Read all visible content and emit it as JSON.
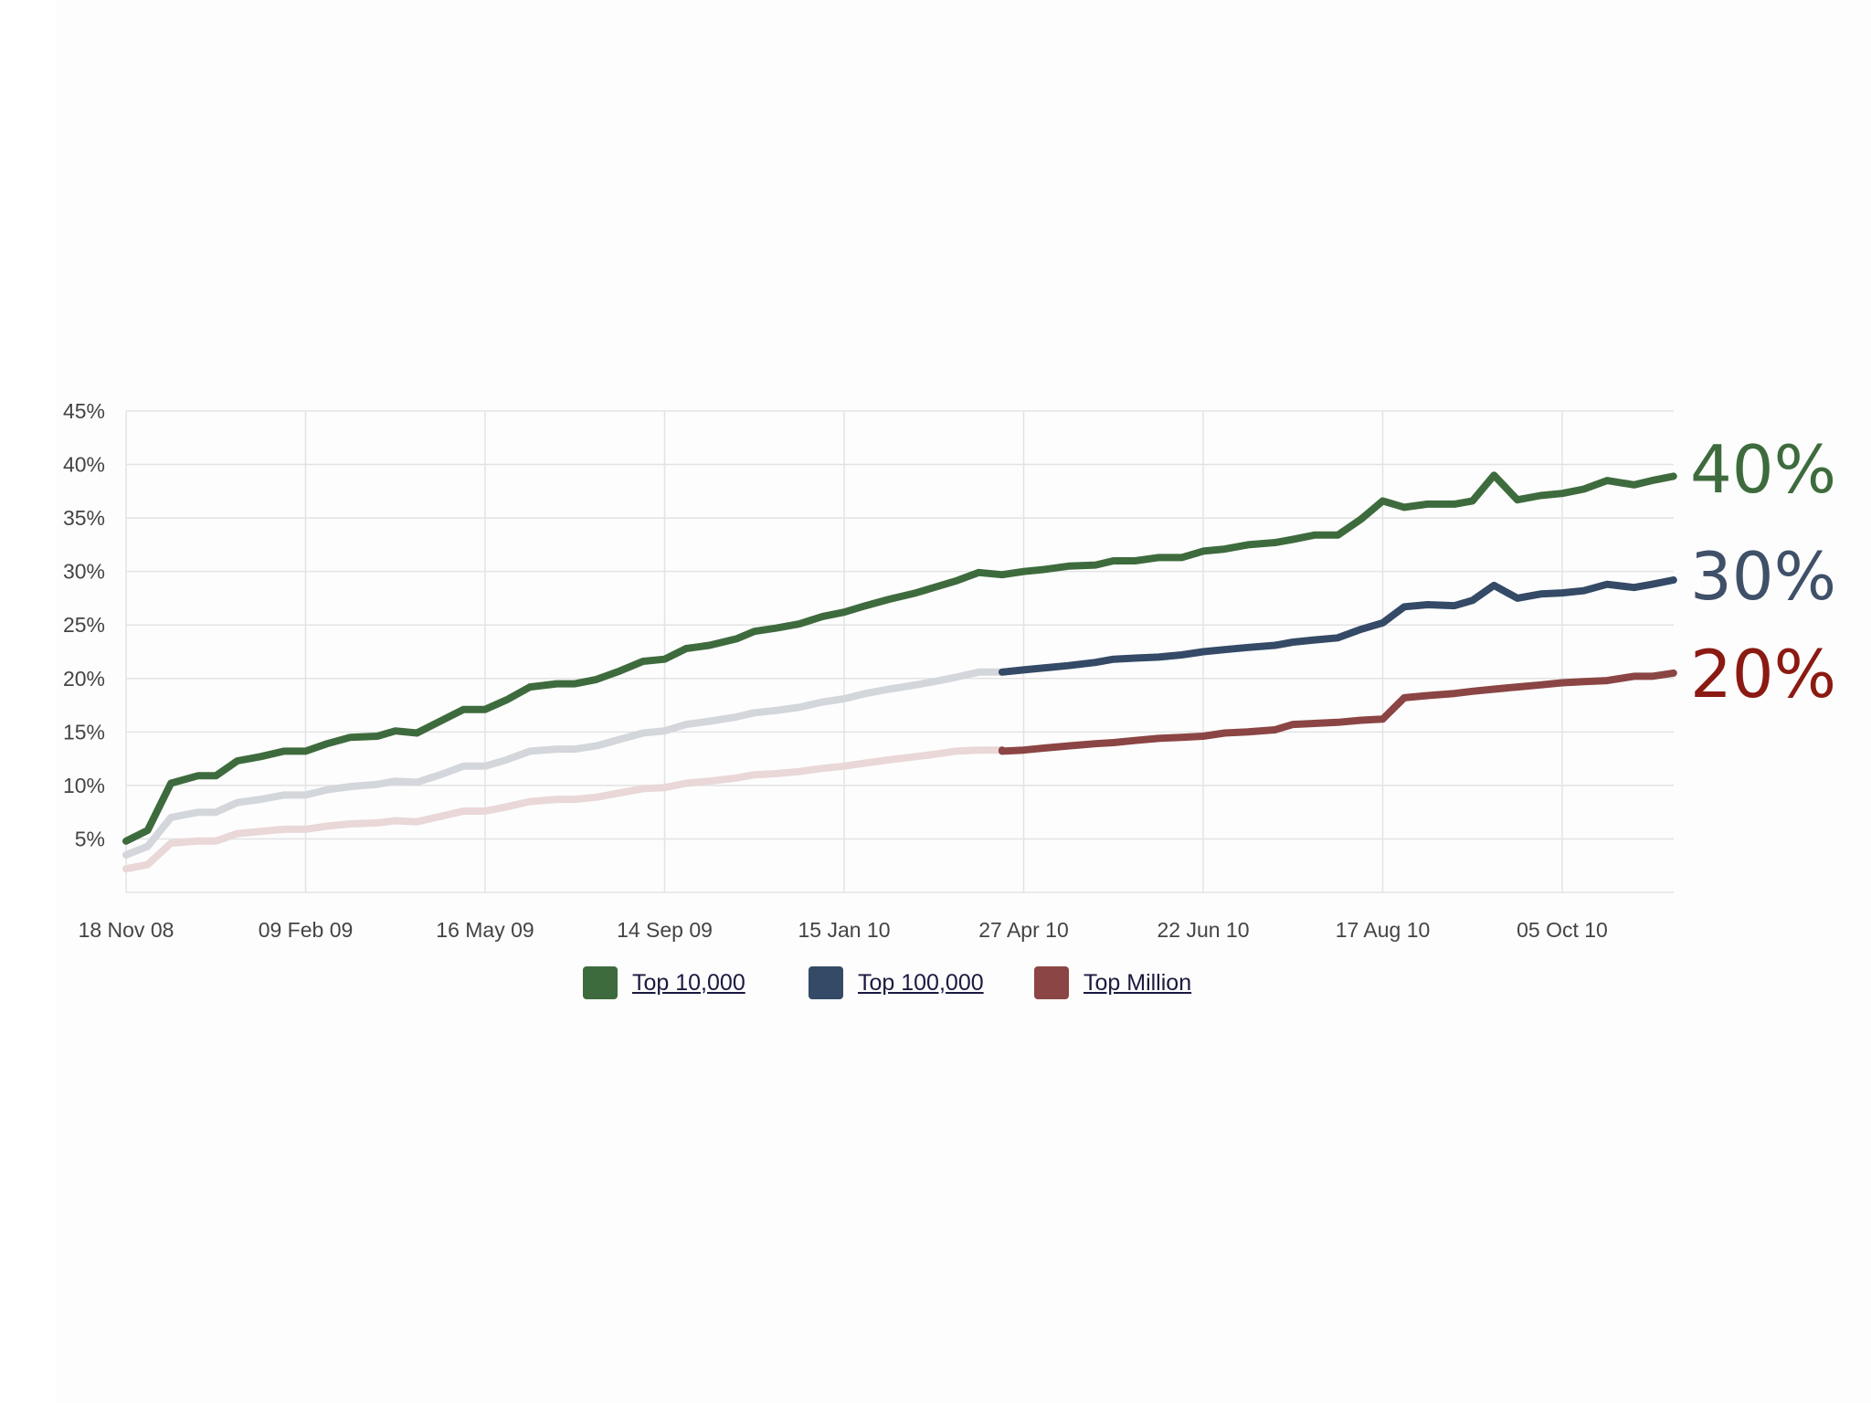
{
  "chart_data": {
    "type": "line",
    "x_tick_labels": [
      "18 Nov 08",
      "09 Feb 09",
      "16 May 09",
      "14 Sep 09",
      "15 Jan 10",
      "27 Apr 10",
      "22 Jun 10",
      "17 Aug 10",
      "05 Oct 10"
    ],
    "y_tick_labels": [
      "45%",
      "40%",
      "35%",
      "30%",
      "25%",
      "20%",
      "15%",
      "10%",
      "5%"
    ],
    "y_tick_values": [
      45,
      40,
      35,
      30,
      25,
      20,
      15,
      10,
      5
    ],
    "ylim": [
      0,
      45
    ],
    "x_tick_count": 9,
    "grid": true,
    "legend_position": "bottom-center",
    "series": [
      {
        "name": "Top 10,000",
        "color": "#3e6b3d",
        "faded_color": "#3e6b3d",
        "faded_until": 0,
        "x": [
          0,
          0.12,
          0.25,
          0.4,
          0.5,
          0.62,
          0.75,
          0.88,
          1,
          1.12,
          1.25,
          1.4,
          1.5,
          1.62,
          1.75,
          1.88,
          2,
          2.12,
          2.25,
          2.4,
          2.5,
          2.62,
          2.75,
          2.88,
          3,
          3.12,
          3.25,
          3.4,
          3.5,
          3.62,
          3.75,
          3.88,
          4,
          4.12,
          4.25,
          4.4,
          4.5,
          4.62,
          4.75,
          4.88,
          5,
          5.12,
          5.25,
          5.4,
          5.5,
          5.62,
          5.75,
          5.88,
          6,
          6.12,
          6.25,
          6.4,
          6.5,
          6.62,
          6.75,
          6.88,
          7,
          7.12,
          7.25,
          7.4,
          7.5,
          7.62,
          7.75,
          7.88,
          8,
          8.12,
          8.25,
          8.4,
          8.5,
          8.62
        ],
        "values": [
          4.8,
          5.8,
          10.2,
          10.9,
          10.9,
          12.3,
          12.7,
          13.2,
          13.2,
          13.9,
          14.5,
          14.6,
          15.1,
          14.9,
          16.0,
          17.1,
          17.1,
          18.0,
          19.2,
          19.5,
          19.5,
          19.9,
          20.7,
          21.6,
          21.8,
          22.8,
          23.1,
          23.7,
          24.4,
          24.7,
          25.1,
          25.8,
          26.2,
          26.8,
          27.4,
          28.0,
          28.5,
          29.1,
          29.9,
          29.7,
          30.0,
          30.2,
          30.5,
          30.6,
          31.0,
          31.0,
          31.3,
          31.3,
          31.9,
          32.1,
          32.5,
          32.7,
          33.0,
          33.4,
          33.4,
          34.9,
          36.6,
          36.0,
          36.3,
          36.3,
          36.6,
          39.0,
          36.7,
          37.1,
          37.3,
          37.7,
          38.5,
          38.1,
          38.5,
          38.9
        ]
      },
      {
        "name": "Top 100,000",
        "color": "#344a66",
        "faded_color": "#d3d6db",
        "faded_until": 4.88,
        "x": [
          0,
          0.12,
          0.25,
          0.4,
          0.5,
          0.62,
          0.75,
          0.88,
          1,
          1.12,
          1.25,
          1.4,
          1.5,
          1.62,
          1.75,
          1.88,
          2,
          2.12,
          2.25,
          2.4,
          2.5,
          2.62,
          2.75,
          2.88,
          3,
          3.12,
          3.25,
          3.4,
          3.5,
          3.62,
          3.75,
          3.88,
          4,
          4.12,
          4.25,
          4.4,
          4.5,
          4.62,
          4.75,
          4.88,
          4.88,
          5,
          5.12,
          5.25,
          5.4,
          5.5,
          5.62,
          5.75,
          5.88,
          6,
          6.12,
          6.25,
          6.4,
          6.5,
          6.62,
          6.75,
          6.88,
          7,
          7.12,
          7.25,
          7.4,
          7.5,
          7.62,
          7.75,
          7.88,
          8,
          8.12,
          8.25,
          8.4,
          8.5,
          8.62
        ],
        "values": [
          3.5,
          4.3,
          7.0,
          7.5,
          7.5,
          8.4,
          8.7,
          9.1,
          9.1,
          9.6,
          9.9,
          10.1,
          10.4,
          10.3,
          11.0,
          11.8,
          11.8,
          12.4,
          13.2,
          13.4,
          13.4,
          13.7,
          14.3,
          14.9,
          15.1,
          15.7,
          16.0,
          16.4,
          16.8,
          17.0,
          17.3,
          17.8,
          18.1,
          18.6,
          19.0,
          19.4,
          19.7,
          20.1,
          20.6,
          20.6,
          20.6,
          20.8,
          21.0,
          21.2,
          21.5,
          21.8,
          21.9,
          22.0,
          22.2,
          22.5,
          22.7,
          22.9,
          23.1,
          23.4,
          23.6,
          23.8,
          24.6,
          25.2,
          26.7,
          26.9,
          26.8,
          27.3,
          28.7,
          27.5,
          27.9,
          28.0,
          28.2,
          28.8,
          28.5,
          28.8,
          29.2
        ]
      },
      {
        "name": "Top Million",
        "color": "#8b4544",
        "faded_color": "#ead7d8",
        "faded_until": 4.88,
        "x": [
          0,
          0.12,
          0.25,
          0.4,
          0.5,
          0.62,
          0.75,
          0.88,
          1,
          1.12,
          1.25,
          1.4,
          1.5,
          1.62,
          1.75,
          1.88,
          2,
          2.12,
          2.25,
          2.4,
          2.5,
          2.62,
          2.75,
          2.88,
          3,
          3.12,
          3.25,
          3.4,
          3.5,
          3.62,
          3.75,
          3.88,
          4,
          4.12,
          4.25,
          4.4,
          4.5,
          4.62,
          4.75,
          4.88,
          4.88,
          5,
          5.12,
          5.25,
          5.4,
          5.5,
          5.62,
          5.75,
          5.88,
          6,
          6.12,
          6.25,
          6.4,
          6.5,
          6.62,
          6.75,
          6.88,
          7,
          7.12,
          7.25,
          7.4,
          7.5,
          7.62,
          7.75,
          7.88,
          8,
          8.12,
          8.25,
          8.4,
          8.5,
          8.62
        ],
        "values": [
          2.2,
          2.6,
          4.6,
          4.8,
          4.8,
          5.5,
          5.7,
          5.9,
          5.9,
          6.2,
          6.4,
          6.5,
          6.7,
          6.6,
          7.1,
          7.6,
          7.6,
          8.0,
          8.5,
          8.7,
          8.7,
          8.9,
          9.3,
          9.7,
          9.8,
          10.2,
          10.4,
          10.7,
          11.0,
          11.1,
          11.3,
          11.6,
          11.8,
          12.1,
          12.4,
          12.7,
          12.9,
          13.2,
          13.3,
          13.3,
          13.2,
          13.3,
          13.5,
          13.7,
          13.9,
          14.0,
          14.2,
          14.4,
          14.5,
          14.6,
          14.9,
          15.0,
          15.2,
          15.7,
          15.8,
          15.9,
          16.1,
          16.2,
          18.2,
          18.4,
          18.6,
          18.8,
          19.0,
          19.2,
          19.4,
          19.6,
          19.7,
          19.8,
          20.2,
          20.2,
          20.5
        ]
      }
    ],
    "annotations": [
      {
        "text": "40%",
        "color": "#3e6b3d",
        "y": 39.5
      },
      {
        "text": "30%",
        "color": "#3f5068",
        "y": 29.5
      },
      {
        "text": "20%",
        "color": "#8b1a12",
        "y": 20
      }
    ]
  }
}
